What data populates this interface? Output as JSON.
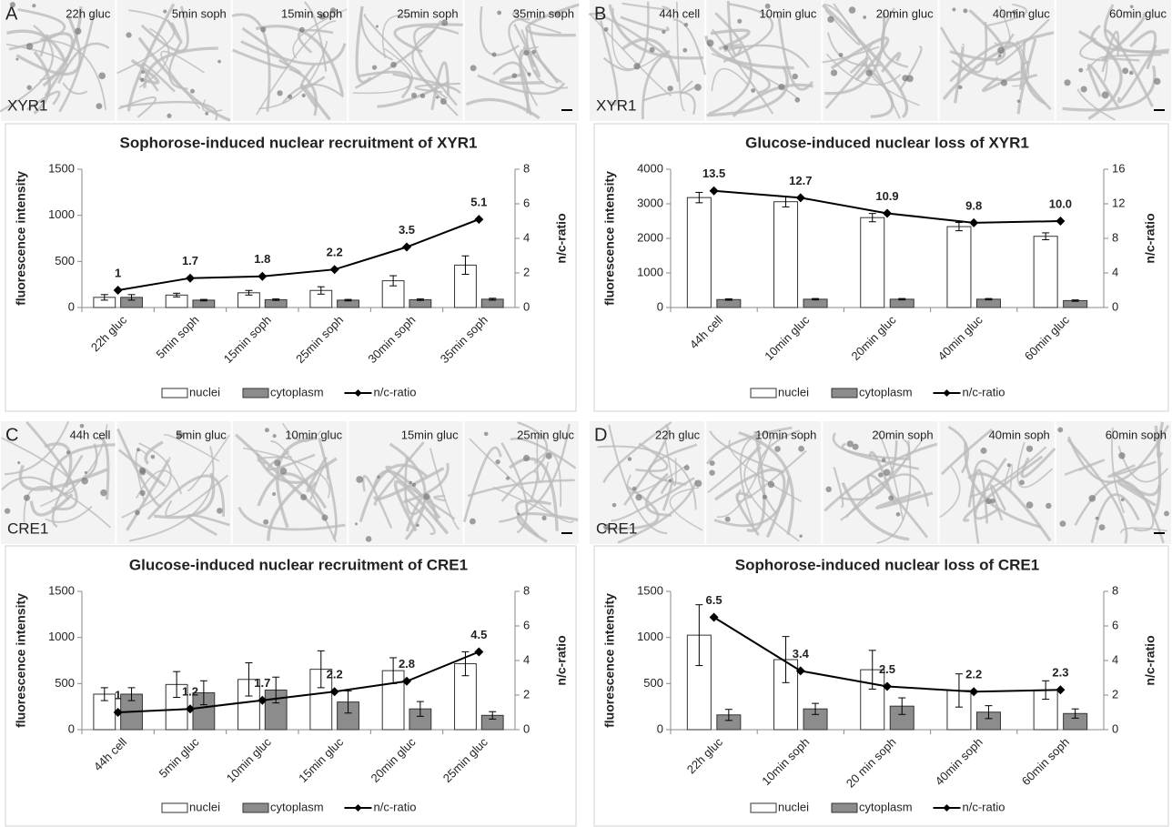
{
  "chart_data": [
    {
      "type": "bar",
      "panel_label": "A",
      "channel_label": "XYR1",
      "image_labels": [
        "22h gluc",
        "5min soph",
        "15min soph",
        "25min soph",
        "35min soph"
      ],
      "title": "Sophorose-induced nuclear recruitment of XYR1",
      "y_label": "fluorescence intensity",
      "y2_label": "n/c-ratio",
      "categories": [
        "22h gluc",
        "5min soph",
        "15min soph",
        "25min soph",
        "30min soph",
        "35min soph"
      ],
      "ylim": [
        0,
        1500
      ],
      "yticks": [
        0,
        500,
        1000,
        1500
      ],
      "y2lim": [
        0,
        8
      ],
      "y2ticks": [
        0,
        2,
        4,
        6,
        8
      ],
      "series": [
        {
          "name": "nuclei",
          "color": "#ffffff",
          "values": [
            110,
            135,
            160,
            185,
            290,
            460
          ],
          "errors": [
            30,
            20,
            25,
            40,
            55,
            100
          ]
        },
        {
          "name": "cytoplasm",
          "color": "#8c8c8c",
          "values": [
            110,
            80,
            85,
            80,
            85,
            90
          ],
          "errors": [
            30,
            8,
            8,
            8,
            8,
            10
          ]
        },
        {
          "name": "n/c-ratio",
          "color": "#000000",
          "axis": "y2",
          "values": [
            1,
            1.7,
            1.8,
            2.2,
            3.5,
            5.1
          ]
        }
      ]
    },
    {
      "type": "bar",
      "panel_label": "B",
      "channel_label": "XYR1",
      "image_labels": [
        "44h cell",
        "10min gluc",
        "20min gluc",
        "40min gluc",
        "60min gluc"
      ],
      "title": "Glucose-induced nuclear loss of XYR1",
      "y_label": "fluorescence intensity",
      "y2_label": "n/c-ratio",
      "categories": [
        "44h cell",
        "10min gluc",
        "20min gluc",
        "40min gluc",
        "60min gluc"
      ],
      "ylim": [
        0,
        4000
      ],
      "yticks": [
        0,
        1000,
        2000,
        3000,
        4000
      ],
      "y2lim": [
        0,
        16
      ],
      "y2ticks": [
        0,
        4,
        8,
        12,
        16
      ],
      "series": [
        {
          "name": "nuclei",
          "color": "#ffffff",
          "values": [
            3180,
            3060,
            2600,
            2340,
            2060
          ],
          "errors": [
            150,
            150,
            120,
            120,
            100
          ]
        },
        {
          "name": "cytoplasm",
          "color": "#8c8c8c",
          "values": [
            230,
            240,
            240,
            240,
            200
          ],
          "errors": [
            20,
            20,
            20,
            20,
            20
          ]
        },
        {
          "name": "n/c-ratio",
          "color": "#000000",
          "axis": "y2",
          "values": [
            13.5,
            12.7,
            10.9,
            9.8,
            10.0
          ],
          "value_labels": [
            "13.5",
            "12.7",
            "10.9",
            "9.8",
            "10.0"
          ]
        }
      ]
    },
    {
      "type": "bar",
      "panel_label": "C",
      "channel_label": "CRE1",
      "image_labels": [
        "44h cell",
        "5min gluc",
        "10min gluc",
        "15min gluc",
        "25min gluc"
      ],
      "title": "Glucose-induced nuclear recruitment of CRE1",
      "y_label": "fluorescence intensity",
      "y2_label": "n/c-ratio",
      "categories": [
        "44h cell",
        "5min gluc",
        "10min gluc",
        "15min gluc",
        "20min gluc",
        "25min  gluc"
      ],
      "ylim": [
        0,
        1500
      ],
      "yticks": [
        0,
        500,
        1000,
        1500
      ],
      "y2lim": [
        0,
        8
      ],
      "y2ticks": [
        0,
        2,
        4,
        6,
        8
      ],
      "series": [
        {
          "name": "nuclei",
          "color": "#ffffff",
          "values": [
            385,
            490,
            545,
            655,
            640,
            715
          ],
          "errors": [
            70,
            140,
            180,
            200,
            140,
            130
          ]
        },
        {
          "name": "cytoplasm",
          "color": "#8c8c8c",
          "values": [
            385,
            400,
            430,
            300,
            225,
            155
          ],
          "errors": [
            70,
            130,
            140,
            120,
            80,
            40
          ]
        },
        {
          "name": "n/c-ratio",
          "color": "#000000",
          "axis": "y2",
          "values": [
            1,
            1.2,
            1.7,
            2.2,
            2.8,
            4.5
          ]
        }
      ]
    },
    {
      "type": "bar",
      "panel_label": "D",
      "channel_label": "CRE1",
      "image_labels": [
        "22h gluc",
        "10min soph",
        "20min soph",
        "40min soph",
        "60min soph"
      ],
      "title": "Sophorose-induced nuclear loss of CRE1",
      "y_label": "fluorescence intensity",
      "y2_label": "n/c-ratio",
      "categories": [
        "22h gluc",
        "10min soph",
        "20 min soph",
        "40min soph",
        "60min soph"
      ],
      "ylim": [
        0,
        1500
      ],
      "yticks": [
        0,
        500,
        1000,
        1500
      ],
      "y2lim": [
        0,
        8
      ],
      "y2ticks": [
        0,
        2,
        4,
        6,
        8
      ],
      "series": [
        {
          "name": "nuclei",
          "color": "#ffffff",
          "values": [
            1025,
            760,
            650,
            425,
            430
          ],
          "errors": [
            330,
            250,
            210,
            180,
            100
          ]
        },
        {
          "name": "cytoplasm",
          "color": "#8c8c8c",
          "values": [
            160,
            225,
            255,
            190,
            175
          ],
          "errors": [
            60,
            60,
            90,
            70,
            50
          ]
        },
        {
          "name": "n/c-ratio",
          "color": "#000000",
          "axis": "y2",
          "values": [
            6.5,
            3.4,
            2.5,
            2.2,
            2.3
          ]
        }
      ]
    }
  ]
}
